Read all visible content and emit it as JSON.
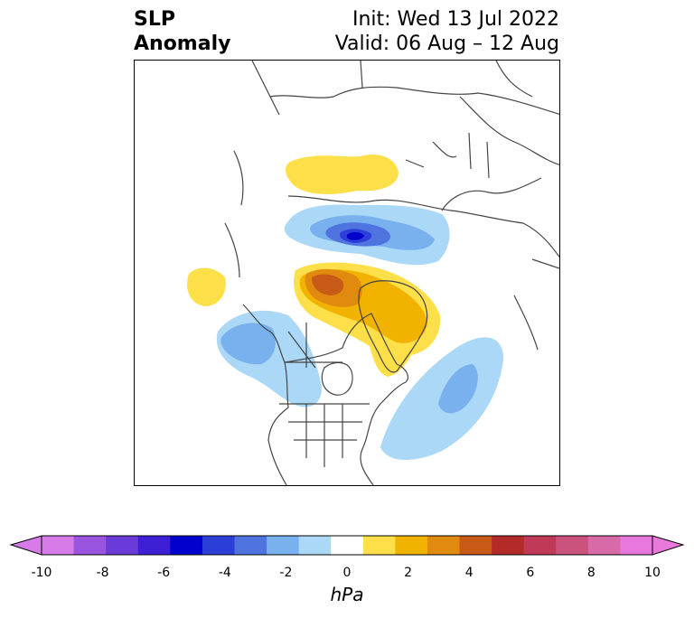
{
  "title": {
    "left_line1": "SLP",
    "left_line2": "Anomaly",
    "right_line1": "Init: Wed 13 Jul 2022",
    "right_line2": "Valid: 06 Aug – 12 Aug"
  },
  "colorbar": {
    "label": "hPa",
    "ticks": [
      "-10",
      "-8",
      "-6",
      "-4",
      "-2",
      "0",
      "2",
      "4",
      "6",
      "8",
      "10"
    ],
    "levels": [
      -10,
      -9,
      -8,
      -7,
      -6,
      -5,
      -4,
      -3,
      -2,
      -1,
      1,
      2,
      3,
      4,
      5,
      6,
      7,
      8,
      9,
      10
    ],
    "colors": [
      "#d67be8",
      "#9a55e0",
      "#6a3bd8",
      "#3d1fd6",
      "#0000cc",
      "#2b3fd8",
      "#4f74e0",
      "#78b1ee",
      "#abd8f6",
      "#ffffff",
      "#fddf4a",
      "#f2b300",
      "#e08a10",
      "#c85a18",
      "#b42a28",
      "#c03a58",
      "#cc527e",
      "#d86aa8",
      "#e878dc"
    ],
    "extend_min_color": "#d67be8",
    "extend_max_color": "#e878dc"
  },
  "map": {
    "projection": "polar-stereographic north",
    "variable": "sea level pressure anomaly",
    "features": [
      {
        "name": "positive-anomaly-greenland",
        "level": "+2 to +6 hPa"
      },
      {
        "name": "positive-anomaly-scandinavia",
        "level": "+1 to +2 hPa"
      },
      {
        "name": "negative-anomaly-barents-kara",
        "level": "-1 to -7 hPa"
      },
      {
        "name": "negative-anomaly-alaska",
        "level": "-1 to -3 hPa"
      },
      {
        "name": "negative-anomaly-north-atlantic",
        "level": "-1 to -3 hPa"
      },
      {
        "name": "positive-anomaly-north-pacific",
        "level": "+1 to +2 hPa"
      }
    ]
  }
}
